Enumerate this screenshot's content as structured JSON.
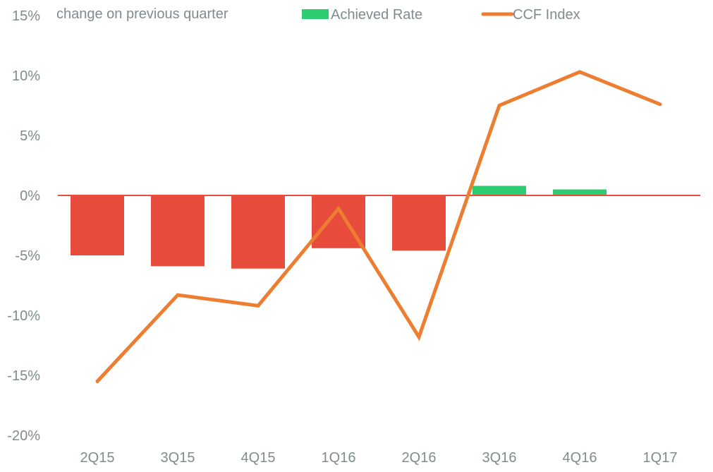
{
  "chart_data": {
    "type": "bar",
    "title": "",
    "subtitle": "change on previous quarter",
    "xlabel": "",
    "ylabel": "",
    "categories": [
      "2Q15",
      "3Q15",
      "4Q15",
      "1Q16",
      "2Q16",
      "3Q16",
      "4Q16",
      "1Q17"
    ],
    "ylim": [
      -20,
      15
    ],
    "yticks": [
      15,
      10,
      5,
      0,
      -5,
      -10,
      -15,
      -20
    ],
    "ytick_labels": [
      "15%",
      "10%",
      "5%",
      "0%",
      "-5%",
      "-10%",
      "-15%",
      "-20%"
    ],
    "grid": false,
    "legend_position": "top",
    "series": [
      {
        "name": "Achieved Rate",
        "type": "bar",
        "values": [
          -5.0,
          -5.9,
          -6.1,
          -4.4,
          -4.6,
          0.8,
          0.5,
          null
        ],
        "positive_color": "#2ecc71",
        "negative_color": "#e74c3c"
      },
      {
        "name": "CCF Index",
        "type": "line",
        "values": [
          -15.5,
          -8.3,
          -9.2,
          -1.1,
          -11.8,
          7.5,
          10.3,
          7.6
        ],
        "color": "#ed7d31"
      }
    ],
    "zero_line_color": "#e74c3c"
  }
}
